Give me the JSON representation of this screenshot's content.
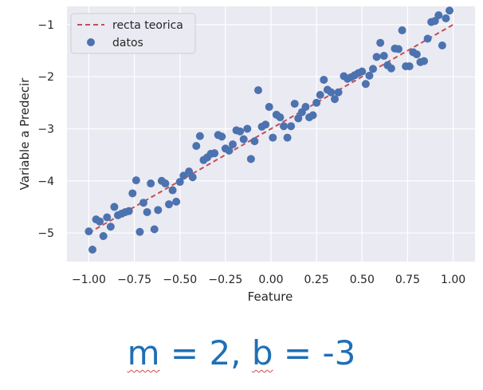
{
  "chart_data": {
    "type": "scatter",
    "xlabel": "Feature",
    "ylabel": "Variable a Predecir",
    "xlim": [
      -1.12,
      1.12
    ],
    "ylim": [
      -5.55,
      -0.65
    ],
    "xticks": [
      "-1.00",
      "-0.75",
      "-0.50",
      "-0.25",
      "0.00",
      "0.25",
      "0.50",
      "0.75",
      "1.00"
    ],
    "yticks": [
      "-1",
      "-2",
      "-3",
      "-4",
      "-5"
    ],
    "grid": true,
    "legend": "top-left",
    "colors": {
      "background": "#eaeaf2",
      "points": "#4c72b0",
      "line": "#c44e52"
    },
    "series": [
      {
        "name": "recta teorica",
        "kind": "line",
        "style": "dashed",
        "x": [
          -1.0,
          1.0
        ],
        "y": [
          -5.0,
          -1.0
        ]
      },
      {
        "name": "datos",
        "kind": "scatter",
        "points": [
          [
            -1.0,
            -4.97
          ],
          [
            -0.98,
            -5.32
          ],
          [
            -0.96,
            -4.74
          ],
          [
            -0.94,
            -4.78
          ],
          [
            -0.92,
            -5.06
          ],
          [
            -0.9,
            -4.7
          ],
          [
            -0.88,
            -4.88
          ],
          [
            -0.86,
            -4.5
          ],
          [
            -0.84,
            -4.66
          ],
          [
            -0.82,
            -4.63
          ],
          [
            -0.8,
            -4.6
          ],
          [
            -0.78,
            -4.58
          ],
          [
            -0.76,
            -4.24
          ],
          [
            -0.74,
            -3.99
          ],
          [
            -0.72,
            -4.98
          ],
          [
            -0.7,
            -4.42
          ],
          [
            -0.68,
            -4.6
          ],
          [
            -0.66,
            -4.05
          ],
          [
            -0.64,
            -4.93
          ],
          [
            -0.62,
            -4.56
          ],
          [
            -0.6,
            -4.0
          ],
          [
            -0.58,
            -4.05
          ],
          [
            -0.56,
            -4.45
          ],
          [
            -0.54,
            -4.18
          ],
          [
            -0.52,
            -4.4
          ],
          [
            -0.5,
            -4.02
          ],
          [
            -0.48,
            -3.9
          ],
          [
            -0.45,
            -3.82
          ],
          [
            -0.43,
            -3.93
          ],
          [
            -0.41,
            -3.33
          ],
          [
            -0.39,
            -3.14
          ],
          [
            -0.37,
            -3.6
          ],
          [
            -0.35,
            -3.55
          ],
          [
            -0.33,
            -3.48
          ],
          [
            -0.31,
            -3.47
          ],
          [
            -0.29,
            -3.12
          ],
          [
            -0.27,
            -3.15
          ],
          [
            -0.25,
            -3.38
          ],
          [
            -0.23,
            -3.42
          ],
          [
            -0.21,
            -3.3
          ],
          [
            -0.19,
            -3.03
          ],
          [
            -0.17,
            -3.05
          ],
          [
            -0.15,
            -3.2
          ],
          [
            -0.13,
            -3.0
          ],
          [
            -0.11,
            -3.58
          ],
          [
            -0.09,
            -3.24
          ],
          [
            -0.07,
            -2.26
          ],
          [
            -0.05,
            -2.96
          ],
          [
            -0.03,
            -2.92
          ],
          [
            -0.01,
            -2.58
          ],
          [
            0.01,
            -3.17
          ],
          [
            0.03,
            -2.73
          ],
          [
            0.05,
            -2.78
          ],
          [
            0.07,
            -2.95
          ],
          [
            0.09,
            -3.17
          ],
          [
            0.11,
            -2.95
          ],
          [
            0.13,
            -2.52
          ],
          [
            0.15,
            -2.8
          ],
          [
            0.17,
            -2.68
          ],
          [
            0.19,
            -2.58
          ],
          [
            0.21,
            -2.78
          ],
          [
            0.23,
            -2.74
          ],
          [
            0.25,
            -2.5
          ],
          [
            0.27,
            -2.35
          ],
          [
            0.29,
            -2.06
          ],
          [
            0.31,
            -2.25
          ],
          [
            0.33,
            -2.3
          ],
          [
            0.35,
            -2.43
          ],
          [
            0.37,
            -2.3
          ],
          [
            0.4,
            -1.99
          ],
          [
            0.42,
            -2.04
          ],
          [
            0.44,
            -2.01
          ],
          [
            0.46,
            -1.97
          ],
          [
            0.48,
            -1.93
          ],
          [
            0.5,
            -1.9
          ],
          [
            0.52,
            -2.14
          ],
          [
            0.54,
            -1.98
          ],
          [
            0.56,
            -1.85
          ],
          [
            0.58,
            -1.62
          ],
          [
            0.6,
            -1.35
          ],
          [
            0.62,
            -1.6
          ],
          [
            0.64,
            -1.78
          ],
          [
            0.66,
            -1.84
          ],
          [
            0.68,
            -1.46
          ],
          [
            0.7,
            -1.47
          ],
          [
            0.72,
            -1.11
          ],
          [
            0.74,
            -1.8
          ],
          [
            0.76,
            -1.8
          ],
          [
            0.78,
            -1.53
          ],
          [
            0.8,
            -1.57
          ],
          [
            0.82,
            -1.72
          ],
          [
            0.84,
            -1.7
          ],
          [
            0.86,
            -1.27
          ],
          [
            0.88,
            -0.95
          ],
          [
            0.9,
            -0.93
          ],
          [
            0.92,
            -0.82
          ],
          [
            0.94,
            -1.4
          ],
          [
            0.96,
            -0.88
          ],
          [
            0.98,
            -0.73
          ]
        ]
      }
    ]
  },
  "caption": {
    "m_letter": "m",
    "middle": " = 2, ",
    "b_letter": "b",
    "rest": " = -3"
  }
}
